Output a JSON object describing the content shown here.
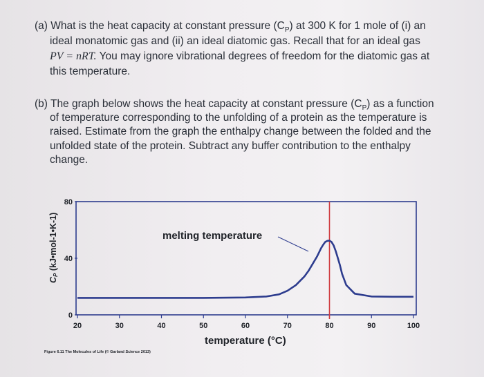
{
  "question_a": {
    "lines": [
      "(a) What is the heat capacity at constant pressure (C",
      "ideal monatomic gas and (ii) an ideal diatomic gas.  Recall that for an ideal gas",
      "You may ignore vibrational degrees of freedom for the diatomic gas at",
      "this temperature."
    ],
    "line1_tail": ") at 300 K for 1 mole of (i) an",
    "cp_sub": "P",
    "equation": "PV = nRT."
  },
  "question_b": {
    "lines": [
      "(b) The graph below shows the heat capacity at constant pressure (C",
      "of temperature corresponding to the unfolding of a protein as the temperature is",
      "raised.  Estimate from the graph the enthalpy change between the folded and the",
      "unfolded state of the protein.  Subtract any buffer contribution to the enthalpy",
      "change."
    ],
    "line1_tail": ") as a function",
    "cp_sub": "P"
  },
  "chart_data": {
    "type": "line",
    "xlabel": "temperature (°C)",
    "ylabel": "C",
    "ylabel_sub": "P",
    "ylabel_units": " (kJ•mol-1•K-1)",
    "xlim": [
      20,
      100
    ],
    "ylim": [
      0,
      80
    ],
    "x_ticks": [
      20,
      30,
      40,
      50,
      60,
      70,
      80,
      90,
      100
    ],
    "y_ticks": [
      0,
      40,
      80
    ],
    "series": [
      {
        "x": [
          20,
          30,
          40,
          50,
          60,
          65,
          68,
          70,
          72,
          74,
          75,
          76,
          77,
          77.5,
          78,
          78.5,
          79,
          79.5,
          80,
          80.5,
          81,
          81.5,
          82,
          82.5,
          83,
          84,
          86,
          90,
          95,
          100
        ],
        "y": [
          12,
          12,
          12,
          12,
          12.3,
          13,
          14.5,
          17,
          21,
          27,
          31,
          36,
          41,
          44,
          47,
          49.5,
          51.5,
          52.3,
          52.5,
          51.5,
          49,
          45,
          40,
          35,
          29,
          21,
          15,
          13,
          12.8,
          12.8
        ]
      }
    ],
    "annotation": "melting temperature",
    "marker_x": 80,
    "colors": {
      "curve": "#2d3c8e",
      "marker": "#cf3a3e",
      "frame": "#2d3c8e"
    },
    "caption": "Figure 6.11 The Molecules of Life (© Garland Science 2013)"
  }
}
